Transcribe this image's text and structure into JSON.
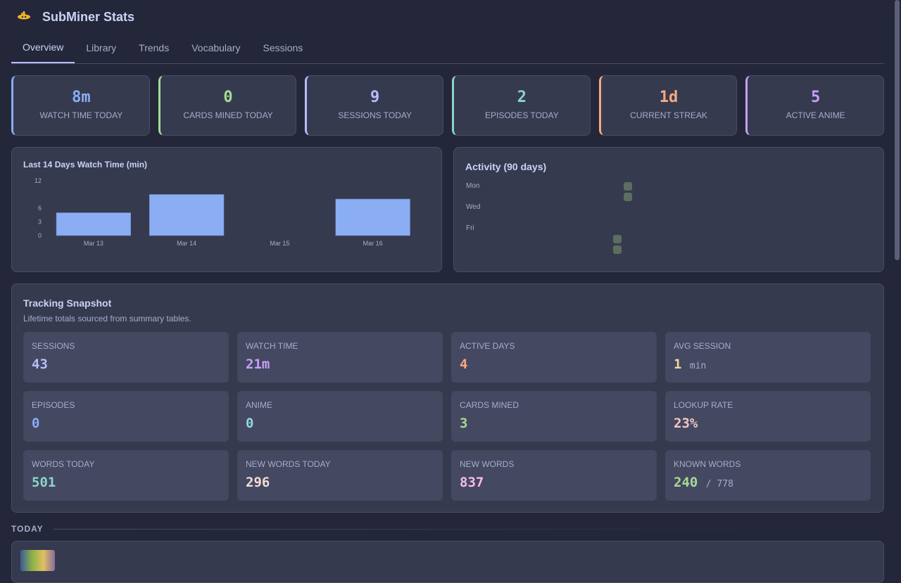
{
  "app": {
    "title": "SubMiner Stats",
    "logo_icon": "submarine-icon"
  },
  "tabs": [
    {
      "label": "Overview",
      "active": true
    },
    {
      "label": "Library"
    },
    {
      "label": "Trends"
    },
    {
      "label": "Vocabulary"
    },
    {
      "label": "Sessions"
    }
  ],
  "kpis": [
    {
      "value": "8m",
      "label": "WATCH TIME TODAY",
      "color": "#8aadf4"
    },
    {
      "value": "0",
      "label": "CARDS MINED TODAY",
      "color": "#a6da95"
    },
    {
      "value": "9",
      "label": "SESSIONS TODAY",
      "color": "#b7bdf8"
    },
    {
      "value": "2",
      "label": "EPISODES TODAY",
      "color": "#8bd5ca"
    },
    {
      "value": "1d",
      "label": "CURRENT STREAK",
      "color": "#f5a97f"
    },
    {
      "value": "5",
      "label": "ACTIVE ANIME",
      "color": "#c6a0f6"
    }
  ],
  "chart_data": [
    {
      "type": "bar",
      "title": "Last 14 Days Watch Time (min)",
      "categories": [
        "Mar 13",
        "Mar 14",
        "Mar 15",
        "Mar 16"
      ],
      "values": [
        5,
        9,
        0,
        8
      ],
      "yticks": [
        "0",
        "3",
        "6",
        "12"
      ],
      "ylim": [
        0,
        12
      ],
      "color": "#8aadf4",
      "grid": false
    },
    {
      "type": "heatmap",
      "title": "Activity (90 days)",
      "row_labels": [
        "Mon",
        "Wed",
        "Fri"
      ],
      "active_days": [
        {
          "week": "last",
          "day": "Mon"
        },
        {
          "week": "last",
          "day": "Tue"
        },
        {
          "week": "previous",
          "day": "Sat"
        },
        {
          "week": "previous",
          "day": "Sun"
        }
      ],
      "color": "#5b6e5f"
    }
  ],
  "snapshot": {
    "title": "Tracking Snapshot",
    "subtitle": "Lifetime totals sourced from summary tables.",
    "tiles": [
      {
        "label": "SESSIONS",
        "value": "43",
        "color": "#b7bdf8"
      },
      {
        "label": "WATCH TIME",
        "value": "21m",
        "color": "#c6a0f6"
      },
      {
        "label": "ACTIVE DAYS",
        "value": "4",
        "color": "#f5a97f"
      },
      {
        "label": "AVG SESSION",
        "value": "1",
        "unit": "min",
        "color": "#eed49f"
      },
      {
        "label": "EPISODES",
        "value": "0",
        "color": "#8aadf4"
      },
      {
        "label": "ANIME",
        "value": "0",
        "color": "#91d7e3"
      },
      {
        "label": "CARDS MINED",
        "value": "3",
        "color": "#a6da95"
      },
      {
        "label": "LOOKUP RATE",
        "value": "23%",
        "color": "#f0c6c6"
      },
      {
        "label": "WORDS TODAY",
        "value": "501",
        "color": "#8bd5ca"
      },
      {
        "label": "NEW WORDS TODAY",
        "value": "296",
        "color": "#f4dbd6"
      },
      {
        "label": "NEW WORDS",
        "value": "837",
        "color": "#f5bde6"
      },
      {
        "label": "KNOWN WORDS",
        "value": "240",
        "unit": "/ 778",
        "color": "#a6da95"
      }
    ]
  },
  "today": {
    "label": "TODAY"
  }
}
